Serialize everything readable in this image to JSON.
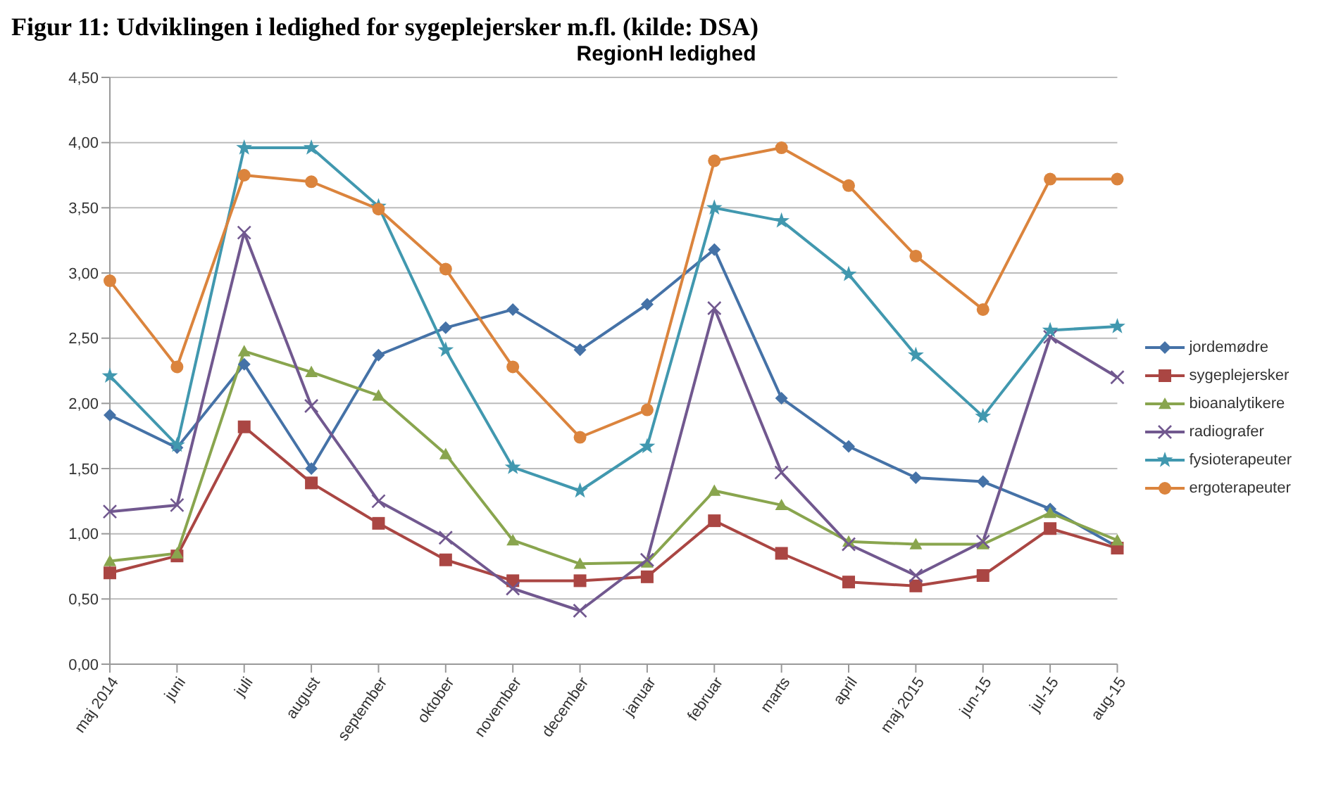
{
  "chart_data": {
    "type": "line",
    "title": "RegionH ledighed",
    "subtitle": "Figur 11: Udviklingen i ledighed for sygeplejersker m.fl. (kilde: DSA)",
    "categories": [
      "maj 2014",
      "juni",
      "juli",
      "august",
      "september",
      "oktober",
      "november",
      "december",
      "januar",
      "februar",
      "marts",
      "april",
      "maj 2015",
      "jun-15",
      "jul-15",
      "aug-15"
    ],
    "series": [
      {
        "name": "jordemødre",
        "color": "#4572a7",
        "marker": "diamond",
        "values": [
          1.91,
          1.66,
          2.3,
          1.5,
          2.37,
          2.58,
          2.72,
          2.41,
          2.76,
          3.18,
          2.04,
          1.67,
          1.43,
          1.4,
          1.19,
          0.9
        ]
      },
      {
        "name": "sygeplejersker",
        "color": "#aa4643",
        "marker": "square",
        "values": [
          0.7,
          0.83,
          1.82,
          1.39,
          1.08,
          0.8,
          0.64,
          0.64,
          0.67,
          1.1,
          0.85,
          0.63,
          0.6,
          0.68,
          1.04,
          0.89
        ]
      },
      {
        "name": "bioanalytikere",
        "color": "#89a54e",
        "marker": "triangle",
        "values": [
          0.79,
          0.85,
          2.4,
          2.24,
          2.06,
          1.61,
          0.95,
          0.77,
          0.78,
          1.33,
          1.22,
          0.94,
          0.92,
          0.92,
          1.16,
          0.95
        ]
      },
      {
        "name": "radiografer",
        "color": "#71588f",
        "marker": "cross",
        "values": [
          1.17,
          1.22,
          3.31,
          1.98,
          1.25,
          0.97,
          0.58,
          0.41,
          0.8,
          2.73,
          1.47,
          0.92,
          0.68,
          0.94,
          2.51,
          2.2
        ]
      },
      {
        "name": "fysioterapeuter",
        "color": "#4198af",
        "marker": "star",
        "values": [
          2.21,
          1.68,
          3.96,
          3.96,
          3.51,
          2.41,
          1.51,
          1.33,
          1.67,
          3.5,
          3.4,
          2.99,
          2.37,
          1.9,
          2.56,
          2.59
        ]
      },
      {
        "name": "ergoterapeuter",
        "color": "#db843d",
        "marker": "circle",
        "values": [
          2.94,
          2.28,
          3.75,
          3.7,
          3.49,
          3.03,
          2.28,
          1.74,
          1.95,
          3.86,
          3.96,
          3.67,
          3.13,
          2.72,
          3.72,
          3.72
        ]
      }
    ],
    "ylim": [
      0,
      4.5
    ],
    "yticks": [
      {
        "value": 0,
        "label": "0,00"
      },
      {
        "value": 0.5,
        "label": "0,50"
      },
      {
        "value": 1,
        "label": "1,00"
      },
      {
        "value": 1.5,
        "label": "1,50"
      },
      {
        "value": 2,
        "label": "2,00"
      },
      {
        "value": 2.5,
        "label": "2,50"
      },
      {
        "value": 3,
        "label": "3,00"
      },
      {
        "value": 3.5,
        "label": "3,50"
      },
      {
        "value": 4,
        "label": "4,00"
      },
      {
        "value": 4.5,
        "label": "4,50"
      }
    ],
    "grid": "y",
    "legend": "right",
    "line_style": "solid"
  }
}
